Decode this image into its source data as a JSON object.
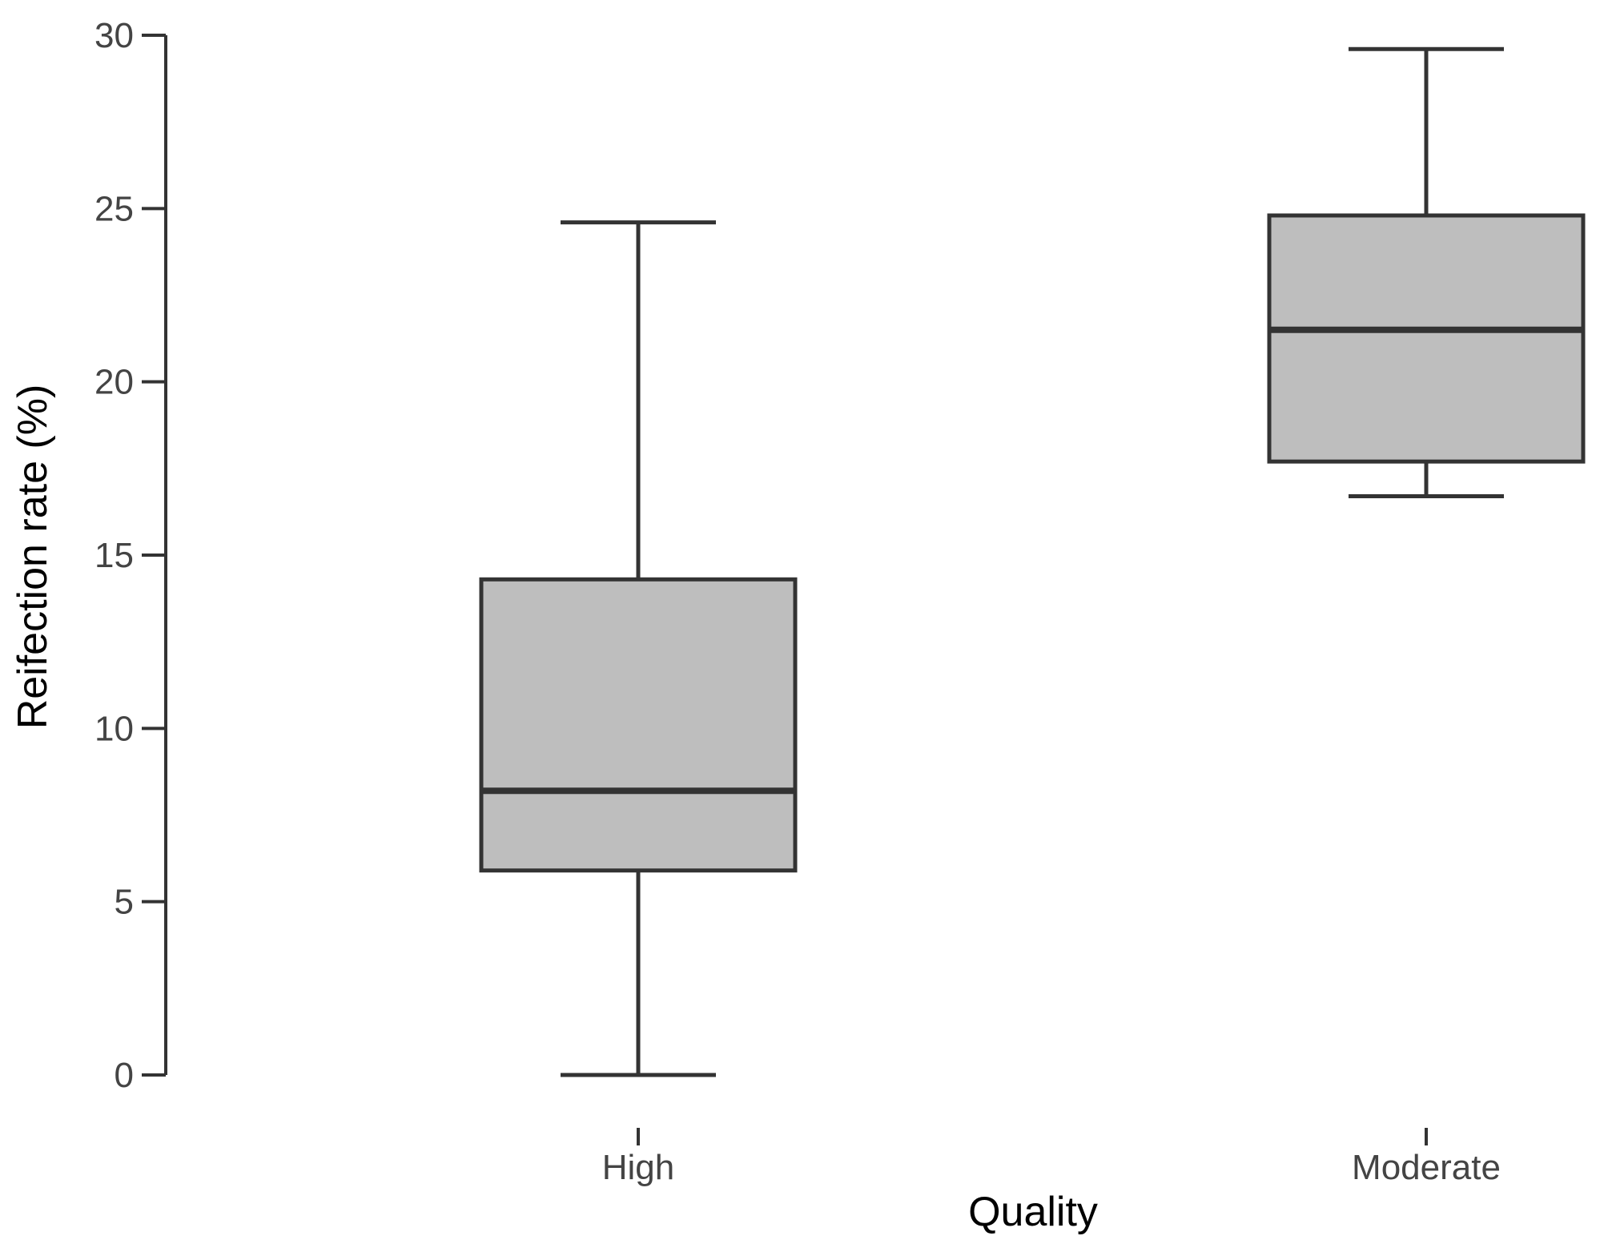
{
  "chart_data": {
    "type": "box",
    "title": "",
    "xlabel": "Quality",
    "ylabel": "Reifection rate (%)",
    "ylim": [
      0,
      30
    ],
    "y_ticks": [
      0,
      5,
      10,
      15,
      20,
      25,
      30
    ],
    "y_tick_labels": [
      "0",
      "5",
      "10",
      "15",
      "20",
      "25",
      "30"
    ],
    "grid": false,
    "legend": "none",
    "categories": [
      "High",
      "Moderate"
    ],
    "boxes": [
      {
        "category": "High",
        "min": 0.0,
        "q1": 5.9,
        "median": 8.2,
        "q3": 14.3,
        "max": 24.6
      },
      {
        "category": "Moderate",
        "min": 16.7,
        "q1": 17.7,
        "median": 21.5,
        "q3": 24.8,
        "max": 29.6
      }
    ],
    "colors": {
      "box_fill": "#bebebe",
      "box_stroke": "#333333"
    }
  }
}
